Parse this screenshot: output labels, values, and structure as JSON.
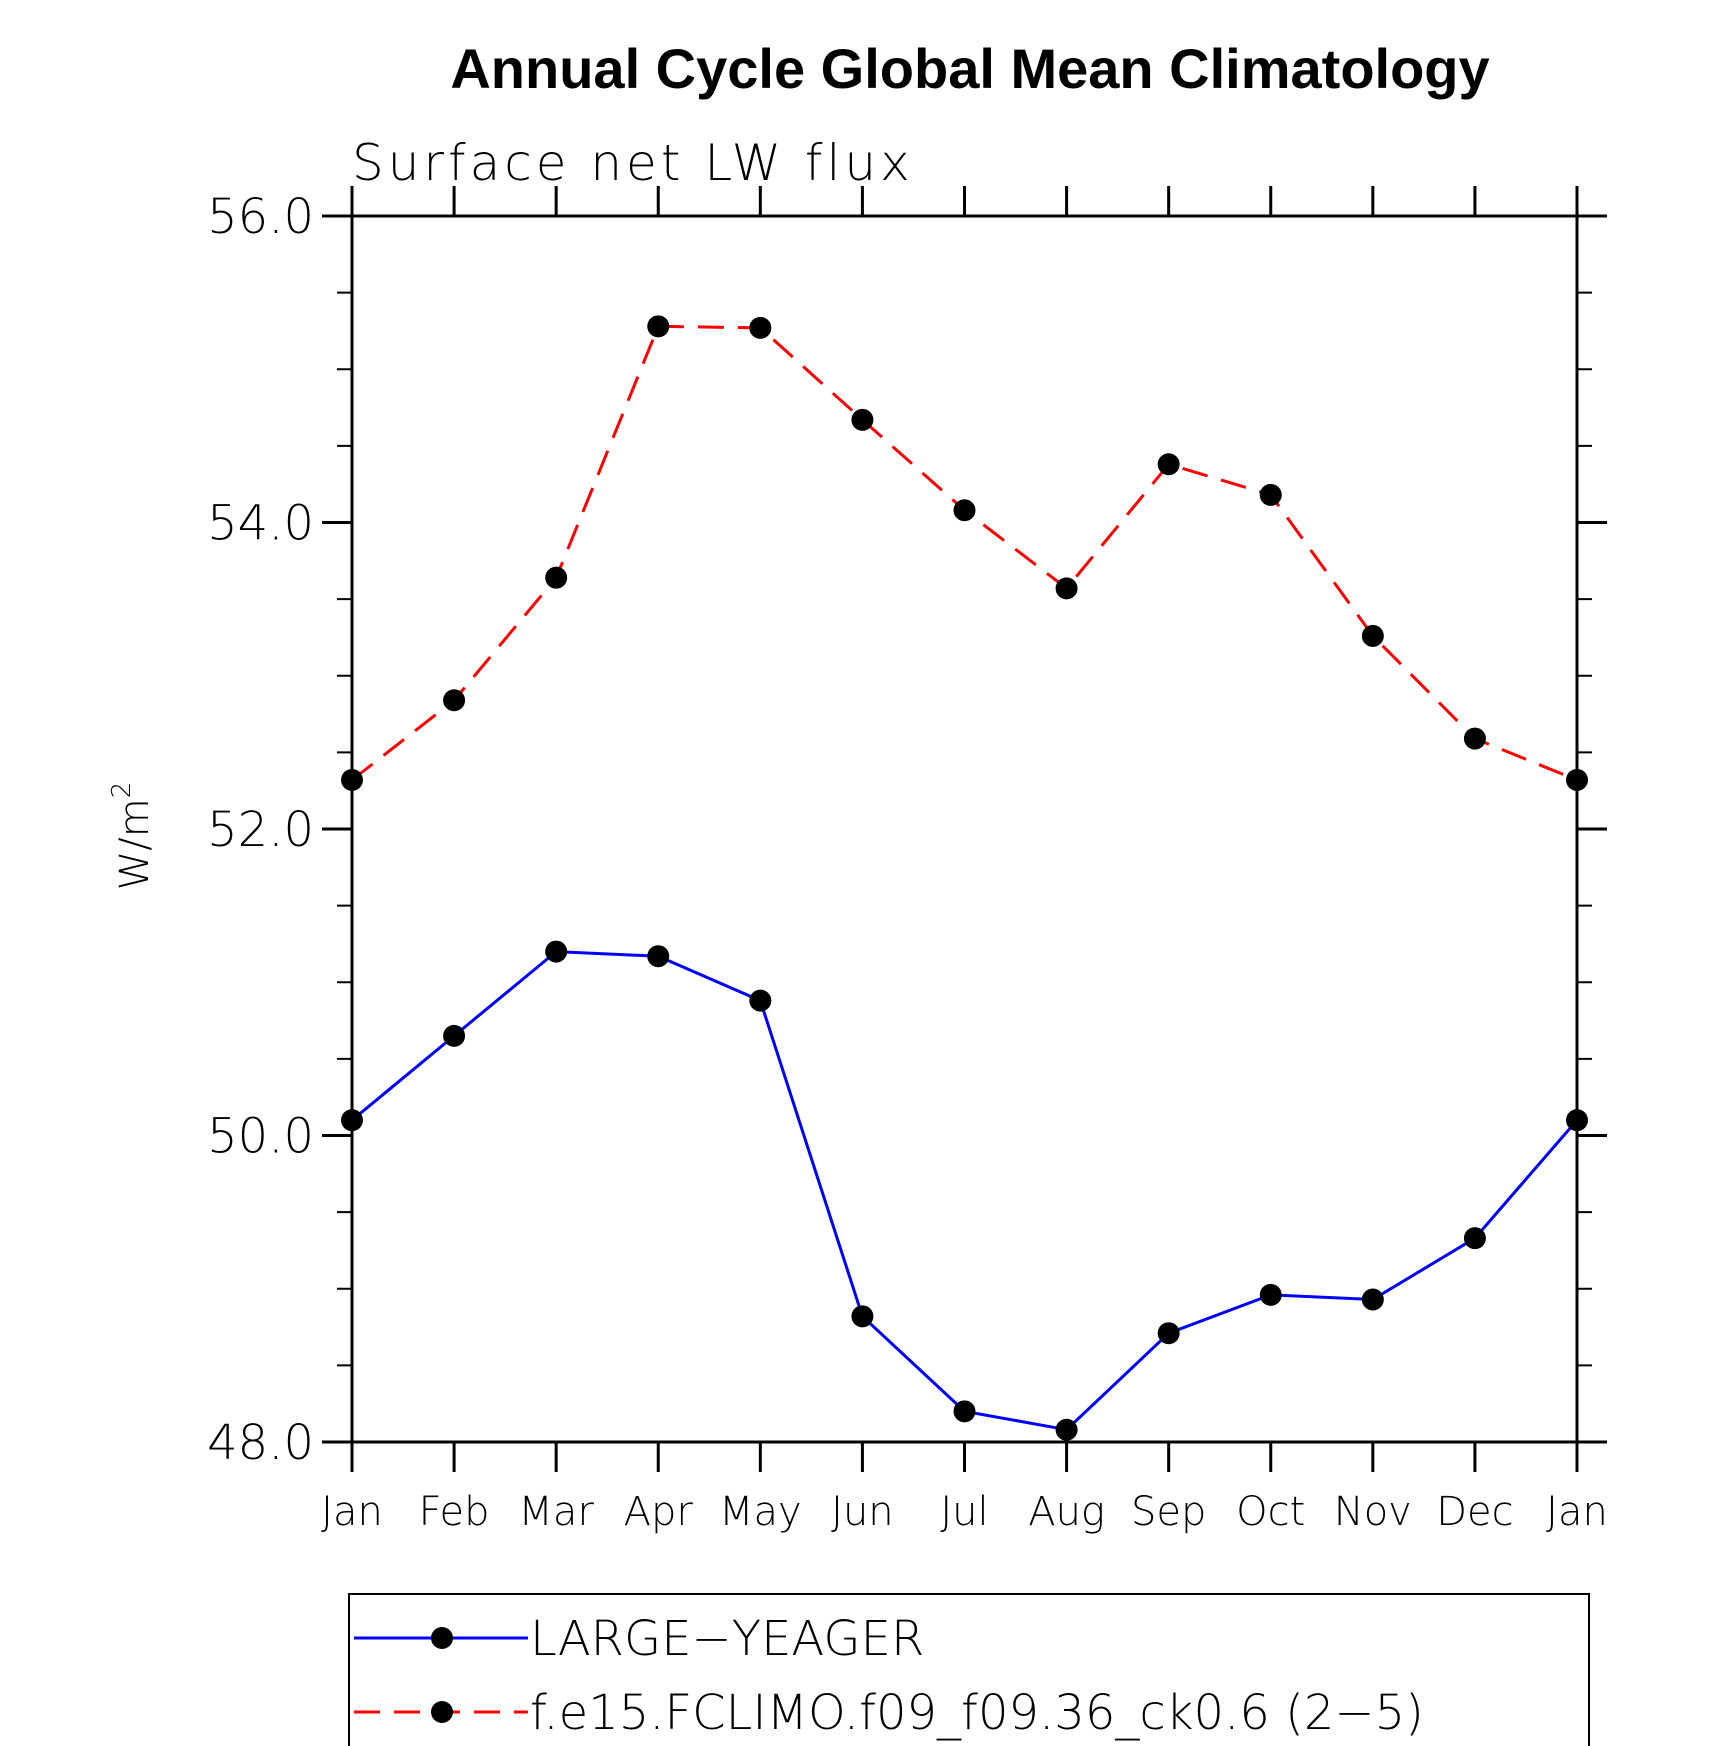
{
  "chart_data": {
    "type": "line",
    "title": "Annual Cycle Global Mean Climatology",
    "subtitle": "Surface net LW flux",
    "ylabel": "W/m",
    "ylabel_superscript": "2",
    "ylim": [
      48.0,
      56.0
    ],
    "yticks": [
      "48.0",
      "50.0",
      "52.0",
      "54.0",
      "56.0"
    ],
    "categories": [
      "Jan",
      "Feb",
      "Mar",
      "Apr",
      "May",
      "Jun",
      "Jul",
      "Aug",
      "Sep",
      "Oct",
      "Nov",
      "Dec",
      "Jan"
    ],
    "series": [
      {
        "name": "LARGE−YEAGER",
        "color": "#0000ff",
        "dash": "solid",
        "values": [
          50.1,
          50.65,
          51.2,
          51.17,
          50.88,
          48.82,
          48.2,
          48.08,
          48.71,
          48.96,
          48.93,
          49.33,
          50.1
        ]
      },
      {
        "name": "f.e15.FCLIMO.f09_f09.36_ck0.6 (2−5)",
        "color": "#ff0000",
        "dash": "dashed",
        "values": [
          52.32,
          52.84,
          53.64,
          55.28,
          55.27,
          54.67,
          54.08,
          53.57,
          54.38,
          54.18,
          53.26,
          52.59,
          52.32
        ]
      }
    ],
    "legend_position": "bottom"
  }
}
